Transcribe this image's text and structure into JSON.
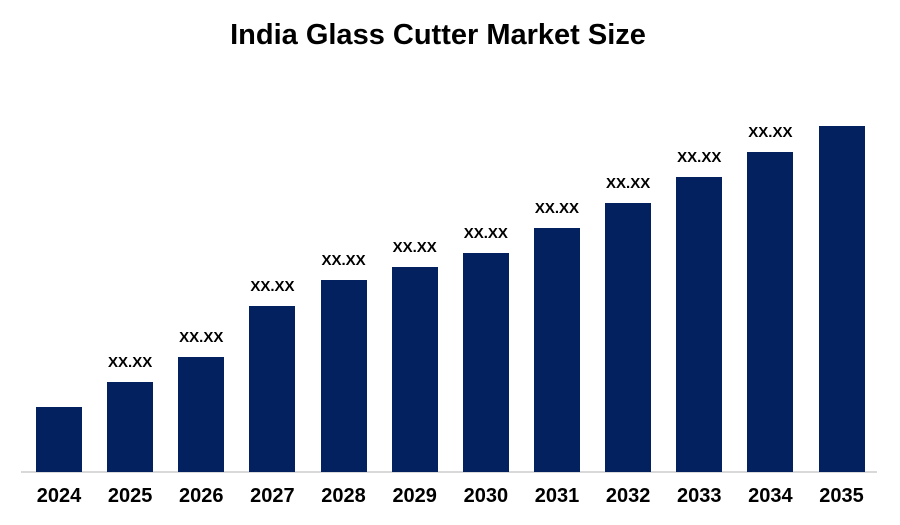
{
  "chart_data": {
    "type": "bar",
    "title": "India Glass Cutter Market Size",
    "xlabel": "",
    "ylabel": "",
    "categories": [
      "2024",
      "2025",
      "2026",
      "2027",
      "2028",
      "2029",
      "2030",
      "2031",
      "2032",
      "2033",
      "2034",
      "2035"
    ],
    "bar_value_labels": [
      "",
      "XX.XX",
      "XX.XX",
      "XX.XX",
      "XX.XX",
      "XX.XX",
      "XX.XX",
      "XX.XX",
      "XX.XX",
      "XX.XX",
      "XX.XX",
      ""
    ],
    "values_relative_height": [
      65,
      90,
      115,
      166,
      192,
      205,
      219,
      244,
      269,
      295,
      320,
      346
    ],
    "value_axis_visible": false,
    "grid": false,
    "legend": false,
    "colors": {
      "bar": "#03215E",
      "baseline": "#D9D9D9",
      "title_text": "#000000",
      "label_text": "#000000"
    }
  }
}
